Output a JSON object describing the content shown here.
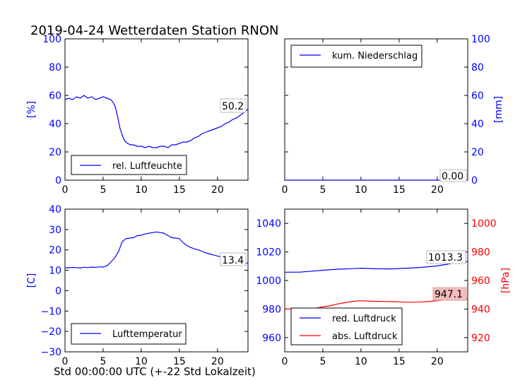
{
  "figure": {
    "title": "2019-04-24 Wetterdaten Station RNON",
    "xlabel": "Std 00:00:00 UTC (+-22 Std Lokalzeit)"
  },
  "chart_data": [
    {
      "type": "line",
      "panel": "top-left",
      "ylabel": "[%]",
      "xlim": [
        0,
        24
      ],
      "ylim": [
        0,
        100
      ],
      "xticks": [
        "0",
        "5",
        "10",
        "15",
        "20"
      ],
      "yticks": [
        "0",
        "20",
        "40",
        "60",
        "80",
        "100"
      ],
      "ytick_color": "#0000ff",
      "last_value_label": "50.2",
      "legend_position": "lower-left",
      "series": [
        {
          "name": "rel. Luftfeuchte",
          "color": "#0000ff",
          "x": [
            0,
            0.5,
            1,
            1.5,
            2,
            2.5,
            3,
            3.5,
            4,
            4.5,
            5,
            5.5,
            6,
            6.3,
            6.6,
            6.9,
            7.2,
            7.5,
            7.8,
            8.2,
            8.6,
            9,
            9.5,
            10,
            10.5,
            11,
            11.5,
            12,
            12.5,
            13,
            13.5,
            14,
            14.5,
            15,
            15.5,
            16,
            16.5,
            17,
            17.5,
            18,
            18.5,
            19,
            19.5,
            20,
            20.5,
            21,
            21.5,
            22,
            22.5,
            23,
            23.5,
            24
          ],
          "values": [
            57,
            58,
            57,
            59,
            58,
            60,
            58,
            59,
            57,
            58,
            59,
            58,
            57,
            55,
            52,
            45,
            37,
            32,
            28,
            26,
            25,
            25,
            24,
            24,
            23,
            24,
            23,
            23,
            24,
            24,
            23,
            25,
            25,
            26,
            27,
            27,
            28,
            30,
            31,
            33,
            34,
            35,
            36,
            37,
            38,
            40,
            41,
            43,
            44,
            46,
            48,
            50.2
          ]
        }
      ]
    },
    {
      "type": "line",
      "panel": "top-right",
      "ylabel": "[mm]",
      "xlim": [
        0,
        24
      ],
      "ylim": [
        0,
        100
      ],
      "xticks": [
        "0",
        "5",
        "10",
        "15",
        "20"
      ],
      "yticks": [
        "0",
        "20",
        "40",
        "60",
        "80",
        "100"
      ],
      "ytick_color": "#0000ff",
      "last_value_label": "0.00",
      "legend_position": "upper-left",
      "series": [
        {
          "name": "kum. Niederschlag",
          "color": "#0000ff",
          "x": [
            0,
            24
          ],
          "values": [
            0,
            0
          ]
        }
      ]
    },
    {
      "type": "line",
      "panel": "bottom-left",
      "ylabel": "[C]",
      "xlim": [
        0,
        24
      ],
      "ylim": [
        -30,
        40
      ],
      "xticks": [
        "0",
        "5",
        "10",
        "15",
        "20"
      ],
      "yticks": [
        "−30",
        "−20",
        "−10",
        "0",
        "10",
        "20",
        "30",
        "40"
      ],
      "ytick_color": "#0000ff",
      "last_value_label": "13.4",
      "legend_position": "lower-left",
      "series": [
        {
          "name": "Lufttemperatur",
          "color": "#0000ff",
          "x": [
            0,
            0.5,
            1,
            1.5,
            2,
            2.5,
            3,
            3.5,
            4,
            4.5,
            5,
            5.5,
            6,
            6.5,
            7,
            7.5,
            8,
            8.5,
            9,
            9.5,
            10,
            10.5,
            11,
            11.5,
            12,
            12.5,
            13,
            13.5,
            14,
            14.5,
            15,
            15.5,
            16,
            16.5,
            17,
            17.5,
            18,
            18.5,
            19,
            19.5,
            20,
            20.5,
            21,
            21.5,
            22,
            22.5,
            23,
            23.5,
            24
          ],
          "values": [
            11.3,
            11.2,
            11.4,
            11.3,
            11.1,
            11.5,
            11.3,
            11.6,
            11.4,
            11.7,
            11.6,
            12.2,
            14,
            16,
            19,
            24,
            25.5,
            25.8,
            26,
            27,
            27.2,
            27.8,
            28.2,
            28.5,
            28.8,
            28.5,
            28.2,
            27,
            26,
            25.8,
            25.5,
            23.5,
            22,
            21.2,
            20.5,
            20,
            19.2,
            18.5,
            18,
            17.5,
            17,
            16.5,
            16.2,
            15.8,
            15,
            14.6,
            14.2,
            13.8,
            13.4
          ]
        }
      ]
    },
    {
      "type": "line",
      "panel": "bottom-right",
      "ylabel_right": "[hPa]",
      "xlim": [
        0,
        24
      ],
      "ylim_left": [
        950,
        1050
      ],
      "ylim_right": [
        910,
        1010
      ],
      "xticks": [
        "0",
        "5",
        "10",
        "15",
        "20"
      ],
      "yticks_left": [
        "960",
        "980",
        "1000",
        "1020",
        "1040"
      ],
      "yticks_right": [
        "920",
        "940",
        "960",
        "980",
        "1000"
      ],
      "ytick_left_color": "#0000ff",
      "ytick_right_color": "#ff0000",
      "last_value_labels": [
        "1013.3",
        "947.1"
      ],
      "legend_position": "lower-left",
      "series": [
        {
          "name": "red. Luftdruck",
          "color": "#0000ff",
          "axis": "left",
          "x": [
            0,
            2,
            3,
            5,
            7,
            9,
            10,
            12,
            14,
            16,
            18,
            20,
            22,
            24
          ],
          "values": [
            1005.8,
            1005.9,
            1006.3,
            1007.2,
            1007.9,
            1008.3,
            1008.6,
            1008.2,
            1008.1,
            1008.6,
            1009.2,
            1010.2,
            1012.0,
            1013.3
          ]
        },
        {
          "name": "abs. Luftdruck",
          "color": "#ff0000",
          "axis": "right",
          "x": [
            0,
            2,
            3,
            4,
            5,
            6,
            7,
            8,
            9,
            10,
            11,
            12,
            13,
            14,
            15,
            16,
            17,
            18,
            19,
            20,
            21,
            22,
            23,
            24
          ],
          "values": [
            940.0,
            940.1,
            940.2,
            940.6,
            941.5,
            942.4,
            943.6,
            944.6,
            945.4,
            945.8,
            945.6,
            945.4,
            945.3,
            945.2,
            945.0,
            944.8,
            944.8,
            945.0,
            945.4,
            945.8,
            946.3,
            946.7,
            947.0,
            947.1
          ]
        }
      ]
    }
  ]
}
